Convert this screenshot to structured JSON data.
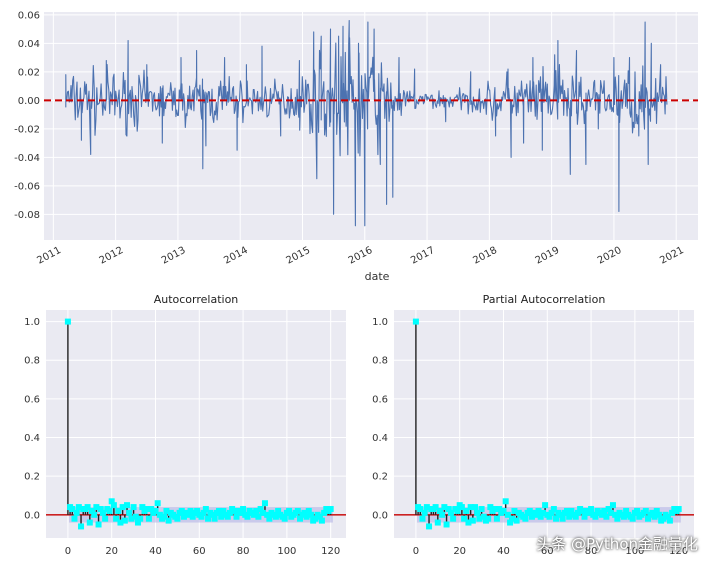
{
  "chart_data": [
    {
      "type": "line",
      "title": "",
      "xlabel": "date",
      "ylabel": "",
      "xlim": [
        2010.85,
        2021.35
      ],
      "ylim": [
        -0.098,
        0.062
      ],
      "yticks": [
        -0.08,
        -0.06,
        -0.04,
        -0.02,
        0.0,
        0.02,
        0.04,
        0.06
      ],
      "ytick_labels": [
        "-0.08",
        "-0.06",
        "-0.04",
        "-0.02",
        "0.00",
        "0.02",
        "0.04",
        "0.06"
      ],
      "xticks": [
        2011,
        2012,
        2013,
        2014,
        2015,
        2016,
        2017,
        2018,
        2019,
        2020,
        2021
      ],
      "xtick_labels": [
        "2011",
        "2012",
        "2013",
        "2014",
        "2015",
        "2016",
        "2017",
        "2018",
        "2019",
        "2020",
        "2021"
      ],
      "date_range": [
        2011.2,
        2020.85
      ],
      "hline": 0.0,
      "series_color": "#4c72b0",
      "hline_color": "#cc0000",
      "spikes": [
        {
          "x": 2011.2,
          "y": 0.018
        },
        {
          "x": 2011.45,
          "y": -0.028
        },
        {
          "x": 2011.6,
          "y": -0.038
        },
        {
          "x": 2011.85,
          "y": 0.028
        },
        {
          "x": 2012.2,
          "y": 0.042
        },
        {
          "x": 2012.5,
          "y": 0.025
        },
        {
          "x": 2012.75,
          "y": -0.03
        },
        {
          "x": 2013.05,
          "y": 0.03
        },
        {
          "x": 2013.3,
          "y": 0.035
        },
        {
          "x": 2013.4,
          "y": -0.048
        },
        {
          "x": 2013.45,
          "y": -0.032
        },
        {
          "x": 2013.75,
          "y": 0.03
        },
        {
          "x": 2013.95,
          "y": -0.035
        },
        {
          "x": 2014.1,
          "y": 0.025
        },
        {
          "x": 2014.35,
          "y": 0.038
        },
        {
          "x": 2014.65,
          "y": -0.025
        },
        {
          "x": 2014.95,
          "y": 0.028
        },
        {
          "x": 2015.18,
          "y": 0.048
        },
        {
          "x": 2015.23,
          "y": -0.055
        },
        {
          "x": 2015.3,
          "y": 0.045
        },
        {
          "x": 2015.45,
          "y": 0.05
        },
        {
          "x": 2015.5,
          "y": -0.08
        },
        {
          "x": 2015.58,
          "y": 0.045
        },
        {
          "x": 2015.65,
          "y": 0.052
        },
        {
          "x": 2015.75,
          "y": 0.056
        },
        {
          "x": 2015.85,
          "y": -0.088
        },
        {
          "x": 2015.9,
          "y": 0.04
        },
        {
          "x": 2016.0,
          "y": -0.088
        },
        {
          "x": 2016.05,
          "y": 0.055
        },
        {
          "x": 2016.15,
          "y": 0.05
        },
        {
          "x": 2016.25,
          "y": -0.045
        },
        {
          "x": 2016.35,
          "y": -0.073
        },
        {
          "x": 2016.45,
          "y": -0.068
        },
        {
          "x": 2016.55,
          "y": 0.03
        },
        {
          "x": 2016.8,
          "y": 0.022
        },
        {
          "x": 2017.3,
          "y": -0.015
        },
        {
          "x": 2017.7,
          "y": 0.02
        },
        {
          "x": 2018.1,
          "y": -0.025
        },
        {
          "x": 2018.3,
          "y": 0.022
        },
        {
          "x": 2018.35,
          "y": -0.04
        },
        {
          "x": 2018.55,
          "y": -0.03
        },
        {
          "x": 2018.7,
          "y": 0.03
        },
        {
          "x": 2018.85,
          "y": -0.035
        },
        {
          "x": 2019.05,
          "y": 0.032
        },
        {
          "x": 2019.1,
          "y": 0.042
        },
        {
          "x": 2019.3,
          "y": -0.052
        },
        {
          "x": 2019.4,
          "y": 0.035
        },
        {
          "x": 2019.55,
          "y": -0.045
        },
        {
          "x": 2019.75,
          "y": -0.02
        },
        {
          "x": 2020.0,
          "y": 0.03
        },
        {
          "x": 2020.08,
          "y": -0.078
        },
        {
          "x": 2020.25,
          "y": 0.03
        },
        {
          "x": 2020.4,
          "y": -0.025
        },
        {
          "x": 2020.5,
          "y": 0.055
        },
        {
          "x": 2020.55,
          "y": -0.045
        },
        {
          "x": 2020.6,
          "y": 0.04
        },
        {
          "x": 2020.75,
          "y": 0.025
        }
      ]
    },
    {
      "type": "scatter",
      "title": "Autocorrelation",
      "xlim": [
        -10,
        127
      ],
      "ylim": [
        -0.12,
        1.06
      ],
      "xticks": [
        0,
        20,
        40,
        60,
        80,
        100,
        120
      ],
      "xtick_labels": [
        "0",
        "20",
        "40",
        "60",
        "80",
        "100",
        "120"
      ],
      "yticks": [
        0.0,
        0.2,
        0.4,
        0.6,
        0.8,
        1.0
      ],
      "ytick_labels": [
        "0.0",
        "0.2",
        "0.4",
        "0.6",
        "0.8",
        "1.0"
      ],
      "conf_band": 0.04,
      "marker_color": "#00ffff",
      "stem_color": "#222222",
      "zero_line_color": "#cc2222",
      "band_color": "#b4b4e6",
      "lags": [
        0,
        1,
        2,
        3,
        4,
        5,
        6,
        7,
        8,
        9,
        10,
        11,
        12,
        13,
        14,
        15,
        16,
        17,
        18,
        19,
        20,
        21,
        22,
        23,
        24,
        25,
        26,
        27,
        28,
        29,
        30,
        31,
        32,
        33,
        34,
        35,
        36,
        37,
        38,
        39,
        40,
        41,
        42,
        43,
        44,
        45,
        46,
        47,
        48,
        49,
        50,
        51,
        52,
        53,
        54,
        55,
        56,
        57,
        58,
        59,
        60,
        61,
        62,
        63,
        64,
        65,
        66,
        67,
        68,
        69,
        70,
        71,
        72,
        73,
        74,
        75,
        76,
        77,
        78,
        79,
        80,
        81,
        82,
        83,
        84,
        85,
        86,
        87,
        88,
        89,
        90,
        91,
        92,
        93,
        94,
        95,
        96,
        97,
        98,
        99,
        100,
        101,
        102,
        103,
        104,
        105,
        106,
        107,
        108,
        109,
        110,
        111,
        112,
        113,
        114,
        115,
        116,
        117,
        118,
        119,
        120
      ],
      "values": [
        1.0,
        0.04,
        0.03,
        -0.02,
        0.01,
        0.04,
        -0.06,
        0.03,
        0.03,
        0.04,
        -0.04,
        0.02,
        0.0,
        0.04,
        -0.05,
        0.03,
        0.01,
        -0.02,
        0.03,
        0.02,
        0.07,
        0.05,
        -0.02,
        0.02,
        -0.04,
        0.04,
        -0.03,
        0.05,
        0.01,
        -0.02,
        0.04,
        -0.01,
        -0.04,
        -0.02,
        0.04,
        0.02,
        0.03,
        -0.02,
        0.03,
        0.01,
        0.02,
        0.06,
        0.0,
        -0.02,
        -0.01,
        0.02,
        -0.03,
        0.01,
        0.0,
        -0.01,
        -0.02,
        0.01,
        0.02,
        -0.01,
        0.01,
        0.0,
        0.02,
        -0.01,
        0.01,
        0.02,
        0.0,
        -0.01,
        0.01,
        0.03,
        -0.02,
        0.01,
        0.0,
        -0.02,
        0.01,
        0.02,
        -0.01,
        0.02,
        0.0,
        -0.01,
        0.01,
        0.03,
        0.02,
        -0.01,
        0.02,
        0.01,
        0.03,
        0.0,
        -0.01,
        0.02,
        0.01,
        0.0,
        0.02,
        -0.01,
        0.03,
        0.01,
        0.06,
        0.0,
        -0.02,
        0.01,
        0.0,
        -0.01,
        0.02,
        0.0,
        -0.01,
        -0.02,
        0.01,
        0.02,
        -0.01,
        0.0,
        0.01,
        0.02,
        -0.02,
        0.0,
        0.01,
        -0.01,
        0.02,
        0.0,
        -0.03,
        -0.02,
        0.0,
        -0.01,
        -0.03,
        0.01,
        0.03,
        0.02,
        0.03
      ]
    },
    {
      "type": "scatter",
      "title": "Partial Autocorrelation",
      "xlim": [
        -10,
        127
      ],
      "ylim": [
        -0.12,
        1.06
      ],
      "xticks": [
        0,
        20,
        40,
        60,
        80,
        100,
        120
      ],
      "xtick_labels": [
        "0",
        "20",
        "40",
        "60",
        "80",
        "100",
        "120"
      ],
      "yticks": [
        0.0,
        0.2,
        0.4,
        0.6,
        0.8,
        1.0
      ],
      "ytick_labels": [
        "0.0",
        "0.2",
        "0.4",
        "0.6",
        "0.8",
        "1.0"
      ],
      "conf_band": 0.04,
      "marker_color": "#00ffff",
      "stem_color": "#222222",
      "zero_line_color": "#cc2222",
      "band_color": "#b4b4e6",
      "lags": [
        0,
        1,
        2,
        3,
        4,
        5,
        6,
        7,
        8,
        9,
        10,
        11,
        12,
        13,
        14,
        15,
        16,
        17,
        18,
        19,
        20,
        21,
        22,
        23,
        24,
        25,
        26,
        27,
        28,
        29,
        30,
        31,
        32,
        33,
        34,
        35,
        36,
        37,
        38,
        39,
        40,
        41,
        42,
        43,
        44,
        45,
        46,
        47,
        48,
        49,
        50,
        51,
        52,
        53,
        54,
        55,
        56,
        57,
        58,
        59,
        60,
        61,
        62,
        63,
        64,
        65,
        66,
        67,
        68,
        69,
        70,
        71,
        72,
        73,
        74,
        75,
        76,
        77,
        78,
        79,
        80,
        81,
        82,
        83,
        84,
        85,
        86,
        87,
        88,
        89,
        90,
        91,
        92,
        93,
        94,
        95,
        96,
        97,
        98,
        99,
        100,
        101,
        102,
        103,
        104,
        105,
        106,
        107,
        108,
        109,
        110,
        111,
        112,
        113,
        114,
        115,
        116,
        117,
        118,
        119,
        120
      ],
      "values": [
        1.0,
        0.04,
        0.03,
        -0.02,
        0.01,
        0.04,
        -0.06,
        0.03,
        0.03,
        0.04,
        -0.04,
        0.02,
        0.0,
        0.04,
        -0.05,
        0.03,
        0.01,
        -0.02,
        0.03,
        0.02,
        0.05,
        0.04,
        -0.02,
        0.02,
        -0.04,
        0.04,
        -0.03,
        0.04,
        0.01,
        -0.02,
        0.03,
        -0.01,
        -0.03,
        -0.02,
        0.04,
        0.02,
        0.03,
        -0.02,
        0.03,
        0.01,
        0.02,
        0.07,
        0.0,
        -0.04,
        -0.02,
        0.02,
        -0.03,
        0.01,
        0.0,
        -0.01,
        -0.02,
        0.01,
        0.02,
        -0.01,
        0.01,
        0.0,
        0.02,
        -0.01,
        0.01,
        0.05,
        0.0,
        -0.01,
        0.01,
        0.03,
        -0.02,
        0.01,
        0.0,
        -0.02,
        0.01,
        0.02,
        -0.01,
        0.02,
        0.0,
        -0.01,
        0.01,
        0.03,
        0.02,
        -0.01,
        0.02,
        0.01,
        0.03,
        0.0,
        -0.01,
        0.02,
        0.01,
        0.0,
        0.02,
        -0.01,
        0.03,
        0.01,
        0.05,
        0.0,
        -0.02,
        0.01,
        0.0,
        -0.01,
        0.02,
        0.0,
        -0.01,
        -0.02,
        0.01,
        0.02,
        -0.01,
        0.0,
        0.01,
        0.02,
        -0.02,
        0.0,
        0.01,
        -0.01,
        0.02,
        0.0,
        -0.03,
        -0.02,
        0.0,
        -0.01,
        -0.03,
        0.01,
        0.03,
        0.02,
        0.03
      ]
    }
  ],
  "watermark": "头条 @Python金融量化"
}
